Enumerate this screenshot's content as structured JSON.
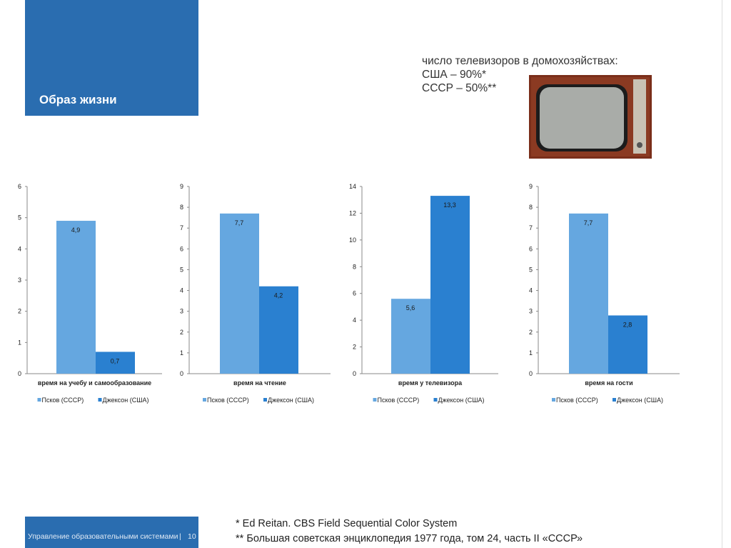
{
  "header": {
    "title": "Образ жизни"
  },
  "info": {
    "line1": "число телевизоров в домохозяйствах:",
    "line2": "США – 90%*",
    "line3": "СССР – 50%**"
  },
  "image": {
    "icon": "vintage-tv-photo"
  },
  "colors": {
    "pskov": "#65a7e0",
    "jackson": "#2a80d0",
    "brand": "#2a6db0"
  },
  "chart_data": [
    {
      "type": "bar",
      "categories": [
        "время на учебу и самообразование"
      ],
      "series": [
        {
          "name": "Псков (СССР)",
          "values": [
            4.9
          ],
          "labels": [
            "4,9"
          ]
        },
        {
          "name": "Джексон (США)",
          "values": [
            0.7
          ],
          "labels": [
            "0,7"
          ]
        }
      ],
      "ylim": [
        0,
        6
      ],
      "yticks": [
        "0",
        "1",
        "2",
        "3",
        "4",
        "5",
        "6"
      ],
      "legend": "bottom"
    },
    {
      "type": "bar",
      "categories": [
        "время на чтение"
      ],
      "series": [
        {
          "name": "Псков (СССР)",
          "values": [
            7.7
          ],
          "labels": [
            "7,7"
          ]
        },
        {
          "name": "Джексон (США)",
          "values": [
            4.2
          ],
          "labels": [
            "4,2"
          ]
        }
      ],
      "ylim": [
        0,
        9
      ],
      "yticks": [
        "0",
        "1",
        "2",
        "3",
        "4",
        "5",
        "6",
        "7",
        "8",
        "9"
      ],
      "legend": "bottom"
    },
    {
      "type": "bar",
      "categories": [
        "время у телевизора"
      ],
      "series": [
        {
          "name": "Псков (СССР)",
          "values": [
            5.6
          ],
          "labels": [
            "5,6"
          ]
        },
        {
          "name": "Джексон (США)",
          "values": [
            13.3
          ],
          "labels": [
            "13,3"
          ]
        }
      ],
      "ylim": [
        0,
        14
      ],
      "yticks": [
        "0",
        "2",
        "4",
        "6",
        "8",
        "10",
        "12",
        "14"
      ],
      "legend": "bottom"
    },
    {
      "type": "bar",
      "categories": [
        "время на гости"
      ],
      "series": [
        {
          "name": "Псков (СССР)",
          "values": [
            7.7
          ],
          "labels": [
            "7,7"
          ]
        },
        {
          "name": "Джексон (США)",
          "values": [
            2.8
          ],
          "labels": [
            "2,8"
          ]
        }
      ],
      "ylim": [
        0,
        9
      ],
      "yticks": [
        "0",
        "1",
        "2",
        "3",
        "4",
        "5",
        "6",
        "7",
        "8",
        "9"
      ],
      "legend": "bottom"
    }
  ],
  "footer": {
    "text": "Управление образовательными системами",
    "sep": "|",
    "page": "10"
  },
  "notes": {
    "n1": "* Ed Reitan. CBS Field Sequential Color System",
    "n2": "** Большая советская энциклопедия 1977 года, том 24, часть II «СССР»"
  }
}
